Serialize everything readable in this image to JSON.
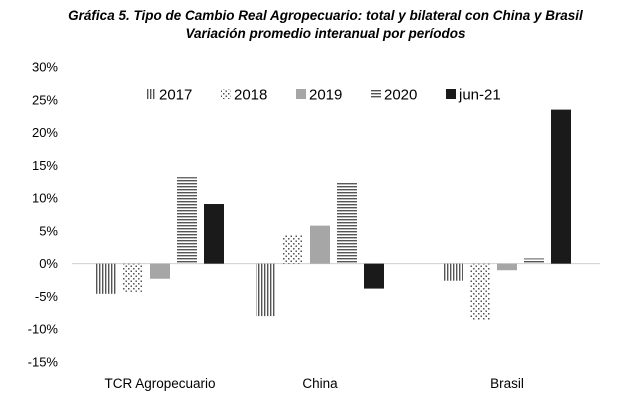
{
  "chart_data": {
    "type": "bar",
    "title": "Gráfica 5. Tipo de Cambio Real Agropecuario: total y bilateral con China y Brasil",
    "subtitle": "Variación promedio interanual por períodos",
    "xlabel": "",
    "ylabel": "",
    "ylim": [
      -15,
      30
    ],
    "yticks": [
      "30%",
      "25%",
      "20%",
      "15%",
      "10%",
      "5%",
      "0%",
      "-5%",
      "-10%",
      "-15%"
    ],
    "ytick_values": [
      30,
      25,
      20,
      15,
      10,
      5,
      0,
      -5,
      -10,
      -15
    ],
    "categories": [
      "TCR Agropecuario",
      "China",
      "Brasil"
    ],
    "legend_position": "top",
    "grid": false,
    "series": [
      {
        "name": "2017",
        "pattern": "vertical-lines",
        "color": "#555555",
        "values": [
          -4.6,
          -8.0,
          -2.6
        ]
      },
      {
        "name": "2018",
        "pattern": "dots",
        "color": "#555555",
        "values": [
          -4.3,
          4.3,
          -8.6
        ]
      },
      {
        "name": "2019",
        "pattern": "solid",
        "color": "#a6a6a6",
        "values": [
          -2.3,
          5.8,
          -1.0
        ]
      },
      {
        "name": "2020",
        "pattern": "horizontal-lines",
        "color": "#555555",
        "values": [
          13.2,
          12.3,
          0.8
        ]
      },
      {
        "name": "jun-21",
        "pattern": "solid",
        "color": "#1a1a1a",
        "values": [
          9.1,
          -3.8,
          23.5
        ]
      }
    ]
  }
}
